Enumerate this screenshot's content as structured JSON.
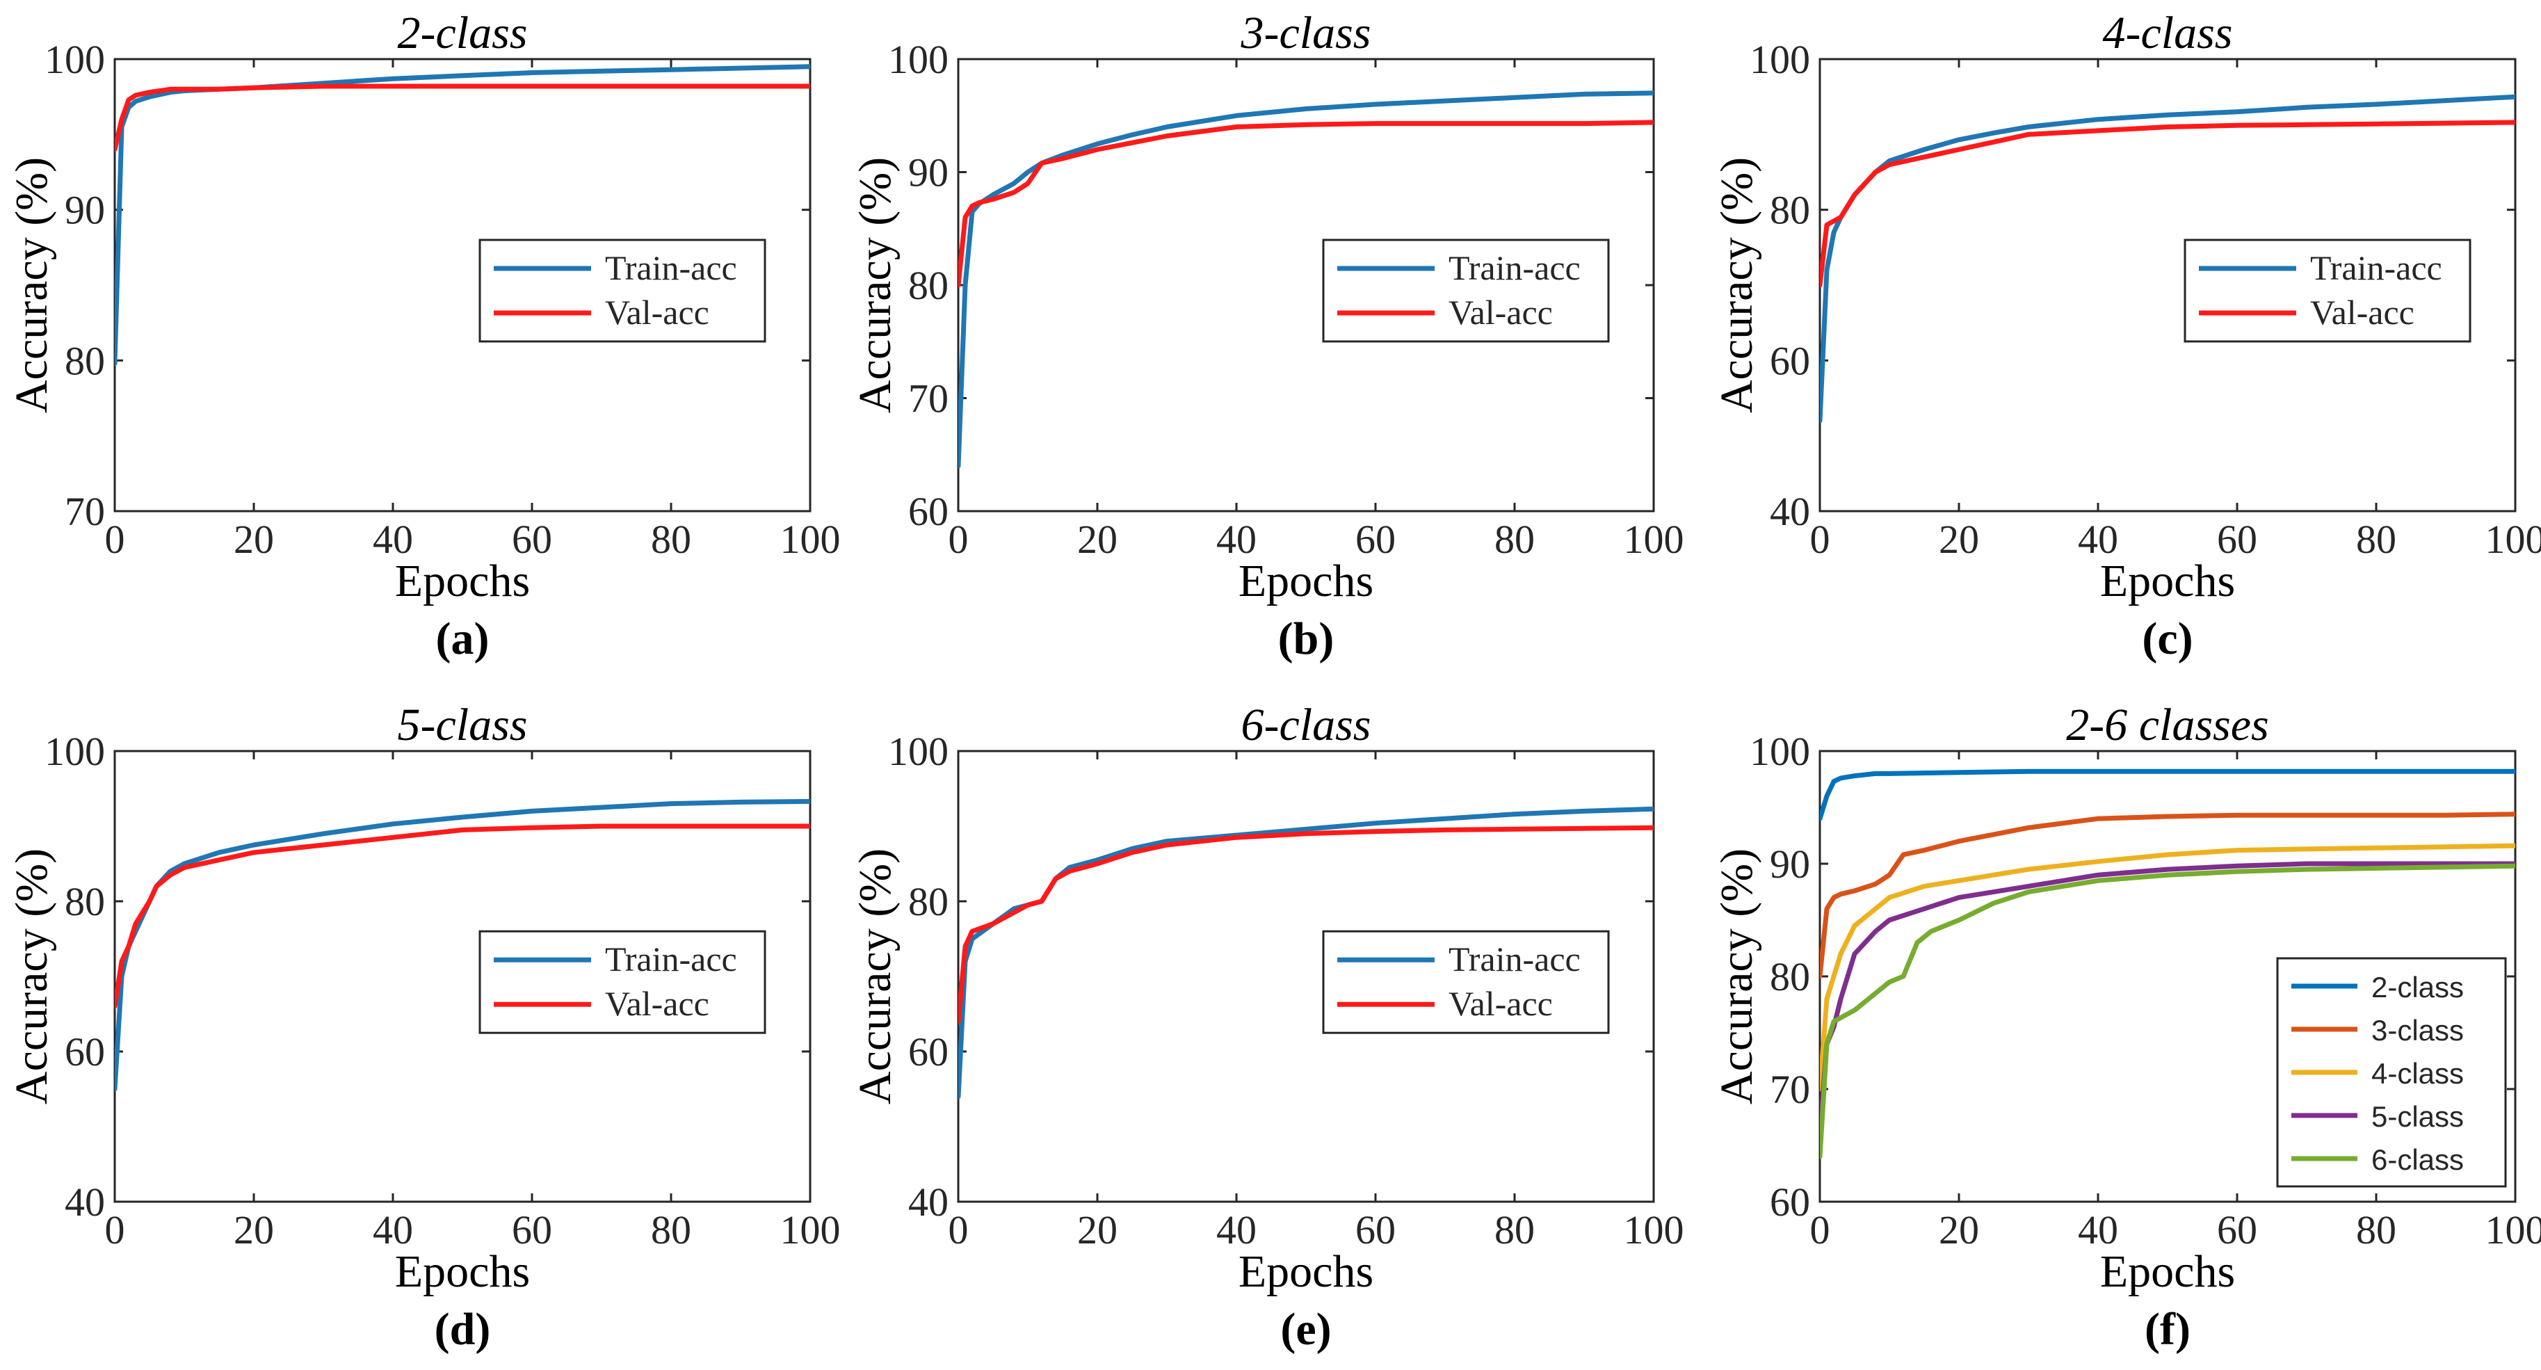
{
  "figure": {
    "colors": {
      "train": "#1f77b4",
      "val": "#ff1a1a",
      "c2": "#0072BD",
      "c3": "#D95319",
      "c4": "#EDB120",
      "c5": "#7E2F8E",
      "c6": "#77AC30"
    }
  },
  "chart_data": [
    {
      "type": "line",
      "panel": "(a)",
      "title": "2-class",
      "xlabel": "Epochs",
      "ylabel": "Accuracy (%)",
      "xlim": [
        0,
        100
      ],
      "ylim": [
        70,
        100
      ],
      "xticks": [
        0,
        20,
        40,
        60,
        80,
        100
      ],
      "yticks": [
        70,
        80,
        90,
        100
      ],
      "legend": "center-right",
      "series": [
        {
          "name": "Train-acc",
          "color": "train",
          "x": [
            0,
            1,
            2,
            3,
            5,
            8,
            10,
            15,
            20,
            30,
            40,
            50,
            60,
            70,
            80,
            90,
            100
          ],
          "y": [
            79.8,
            95.5,
            96.8,
            97.2,
            97.5,
            97.8,
            97.9,
            98.0,
            98.1,
            98.4,
            98.7,
            98.9,
            99.1,
            99.2,
            99.3,
            99.4,
            99.5
          ]
        },
        {
          "name": "Val-acc",
          "color": "val",
          "x": [
            0,
            1,
            2,
            3,
            5,
            8,
            10,
            15,
            20,
            30,
            40,
            50,
            60,
            70,
            80,
            90,
            100
          ],
          "y": [
            94.0,
            96.0,
            97.3,
            97.6,
            97.8,
            98.0,
            98.0,
            98.0,
            98.1,
            98.2,
            98.2,
            98.2,
            98.2,
            98.2,
            98.2,
            98.2,
            98.2
          ]
        }
      ]
    },
    {
      "type": "line",
      "panel": "(b)",
      "title": "3-class",
      "xlabel": "Epochs",
      "ylabel": "Accuracy (%)",
      "xlim": [
        0,
        100
      ],
      "ylim": [
        60,
        100
      ],
      "xticks": [
        0,
        20,
        40,
        60,
        80,
        100
      ],
      "yticks": [
        60,
        70,
        80,
        90,
        100
      ],
      "legend": "center-right",
      "series": [
        {
          "name": "Train-acc",
          "color": "train",
          "x": [
            0,
            1,
            2,
            3,
            5,
            8,
            10,
            12,
            15,
            20,
            25,
            30,
            40,
            50,
            60,
            70,
            80,
            90,
            100
          ],
          "y": [
            64.0,
            80.0,
            86.5,
            87.2,
            88.0,
            89.0,
            90.0,
            90.8,
            91.5,
            92.5,
            93.3,
            94.0,
            95.0,
            95.6,
            96.0,
            96.3,
            96.6,
            96.9,
            97.0
          ]
        },
        {
          "name": "Val-acc",
          "color": "val",
          "x": [
            0,
            1,
            2,
            3,
            5,
            8,
            10,
            12,
            15,
            20,
            25,
            30,
            40,
            50,
            60,
            70,
            80,
            90,
            100
          ],
          "y": [
            80.0,
            86.0,
            87.0,
            87.3,
            87.6,
            88.2,
            89.0,
            90.8,
            91.2,
            92.0,
            92.6,
            93.2,
            94.0,
            94.2,
            94.3,
            94.3,
            94.3,
            94.3,
            94.4
          ]
        }
      ]
    },
    {
      "type": "line",
      "panel": "(c)",
      "title": "4-class",
      "xlabel": "Epochs",
      "ylabel": "Accuracy (%)",
      "xlim": [
        0,
        100
      ],
      "ylim": [
        40,
        100
      ],
      "xticks": [
        0,
        20,
        40,
        60,
        80,
        100
      ],
      "yticks": [
        40,
        60,
        80,
        100
      ],
      "legend": "center-right",
      "series": [
        {
          "name": "Train-acc",
          "color": "train",
          "x": [
            0,
            1,
            2,
            3,
            5,
            8,
            10,
            15,
            20,
            25,
            30,
            40,
            50,
            60,
            70,
            80,
            90,
            100
          ],
          "y": [
            52.0,
            72.0,
            77.0,
            79.0,
            82.0,
            85.0,
            86.5,
            88.0,
            89.3,
            90.2,
            91.0,
            92.0,
            92.6,
            93.0,
            93.6,
            94.0,
            94.5,
            95.0
          ]
        },
        {
          "name": "Val-acc",
          "color": "val",
          "x": [
            0,
            1,
            2,
            3,
            5,
            8,
            10,
            15,
            20,
            25,
            30,
            40,
            50,
            60,
            70,
            80,
            90,
            100
          ],
          "y": [
            70.0,
            78.0,
            78.5,
            79.0,
            82.0,
            85.0,
            86.0,
            87.0,
            88.0,
            89.0,
            90.0,
            90.5,
            91.0,
            91.2,
            91.3,
            91.4,
            91.5,
            91.6
          ]
        }
      ]
    },
    {
      "type": "line",
      "panel": "(d)",
      "title": "5-class",
      "xlabel": "Epochs",
      "ylabel": "Accuracy (%)",
      "xlim": [
        0,
        100
      ],
      "ylim": [
        40,
        100
      ],
      "xticks": [
        0,
        20,
        40,
        60,
        80,
        100
      ],
      "yticks": [
        40,
        60,
        80,
        100
      ],
      "legend": "center-right",
      "series": [
        {
          "name": "Train-acc",
          "color": "train",
          "x": [
            0,
            1,
            2,
            3,
            5,
            6,
            8,
            10,
            15,
            20,
            30,
            40,
            50,
            60,
            70,
            80,
            90,
            100
          ],
          "y": [
            55.0,
            70.0,
            74.0,
            76.0,
            80.0,
            82.0,
            84.0,
            85.0,
            86.5,
            87.5,
            89.0,
            90.3,
            91.2,
            92.0,
            92.5,
            93.0,
            93.2,
            93.3
          ]
        },
        {
          "name": "Val-acc",
          "color": "val",
          "x": [
            0,
            1,
            2,
            3,
            5,
            6,
            8,
            10,
            15,
            20,
            30,
            40,
            50,
            60,
            70,
            80,
            90,
            100
          ],
          "y": [
            66.0,
            72.0,
            74.0,
            77.0,
            80.0,
            82.0,
            83.5,
            84.5,
            85.5,
            86.5,
            87.5,
            88.5,
            89.5,
            89.8,
            90.0,
            90.0,
            90.0,
            90.0
          ]
        }
      ]
    },
    {
      "type": "line",
      "panel": "(e)",
      "title": "6-class",
      "xlabel": "Epochs",
      "ylabel": "Accuracy (%)",
      "xlim": [
        0,
        100
      ],
      "ylim": [
        40,
        100
      ],
      "xticks": [
        0,
        20,
        40,
        60,
        80,
        100
      ],
      "yticks": [
        40,
        60,
        80,
        100
      ],
      "legend": "center-right",
      "series": [
        {
          "name": "Train-acc",
          "color": "train",
          "x": [
            0,
            1,
            2,
            5,
            8,
            10,
            12,
            14,
            16,
            20,
            25,
            30,
            40,
            50,
            60,
            70,
            80,
            90,
            100
          ],
          "y": [
            54.0,
            72.0,
            75.0,
            77.0,
            79.0,
            79.5,
            80.0,
            83.0,
            84.5,
            85.5,
            87.0,
            88.0,
            88.8,
            89.6,
            90.4,
            91.0,
            91.6,
            92.0,
            92.3
          ]
        },
        {
          "name": "Val-acc",
          "color": "val",
          "x": [
            0,
            1,
            2,
            5,
            8,
            10,
            12,
            14,
            16,
            20,
            25,
            30,
            40,
            50,
            60,
            70,
            80,
            90,
            100
          ],
          "y": [
            64.0,
            74.0,
            76.0,
            77.0,
            78.5,
            79.5,
            80.0,
            83.0,
            84.0,
            85.0,
            86.5,
            87.5,
            88.5,
            89.0,
            89.3,
            89.5,
            89.6,
            89.7,
            89.8
          ]
        }
      ]
    },
    {
      "type": "line",
      "panel": "(f)",
      "title": "2-6 classes",
      "xlabel": "Epochs",
      "ylabel": "Accuracy (%)",
      "xlim": [
        0,
        100
      ],
      "ylim": [
        60,
        100
      ],
      "xticks": [
        0,
        20,
        40,
        60,
        80,
        100
      ],
      "yticks": [
        60,
        70,
        80,
        90,
        100
      ],
      "legend": "lower-right",
      "series": [
        {
          "name": "2-class",
          "color": "c2",
          "x": [
            0,
            1,
            2,
            3,
            5,
            8,
            10,
            20,
            30,
            40,
            60,
            80,
            100
          ],
          "y": [
            94.0,
            96.0,
            97.3,
            97.6,
            97.8,
            98.0,
            98.0,
            98.1,
            98.2,
            98.2,
            98.2,
            98.2,
            98.2
          ]
        },
        {
          "name": "3-class",
          "color": "c3",
          "x": [
            0,
            1,
            2,
            3,
            5,
            8,
            10,
            12,
            15,
            20,
            25,
            30,
            40,
            50,
            60,
            70,
            80,
            90,
            100
          ],
          "y": [
            80.0,
            86.0,
            87.0,
            87.3,
            87.6,
            88.2,
            89.0,
            90.8,
            91.2,
            92.0,
            92.6,
            93.2,
            94.0,
            94.2,
            94.3,
            94.3,
            94.3,
            94.3,
            94.4
          ]
        },
        {
          "name": "4-class",
          "color": "c4",
          "x": [
            0,
            1,
            2,
            3,
            5,
            8,
            10,
            15,
            20,
            25,
            30,
            40,
            50,
            60,
            70,
            80,
            90,
            100
          ],
          "y": [
            70.0,
            78.0,
            80.0,
            82.0,
            84.5,
            86.0,
            87.0,
            88.0,
            88.5,
            89.0,
            89.5,
            90.2,
            90.8,
            91.2,
            91.3,
            91.4,
            91.5,
            91.6
          ]
        },
        {
          "name": "5-class",
          "color": "c5",
          "x": [
            0,
            1,
            2,
            3,
            5,
            8,
            10,
            15,
            20,
            30,
            40,
            50,
            60,
            70,
            80,
            90,
            100
          ],
          "y": [
            66.0,
            74.0,
            75.5,
            78.0,
            82.0,
            84.0,
            85.0,
            86.0,
            87.0,
            88.0,
            89.0,
            89.5,
            89.8,
            90.0,
            90.0,
            90.0,
            90.0
          ]
        },
        {
          "name": "6-class",
          "color": "c6",
          "x": [
            0,
            1,
            2,
            5,
            8,
            10,
            12,
            14,
            16,
            20,
            25,
            30,
            40,
            50,
            60,
            70,
            80,
            90,
            100
          ],
          "y": [
            64.0,
            74.0,
            76.0,
            77.0,
            78.5,
            79.5,
            80.0,
            83.0,
            84.0,
            85.0,
            86.5,
            87.5,
            88.5,
            89.0,
            89.3,
            89.5,
            89.6,
            89.7,
            89.8
          ]
        }
      ]
    }
  ]
}
